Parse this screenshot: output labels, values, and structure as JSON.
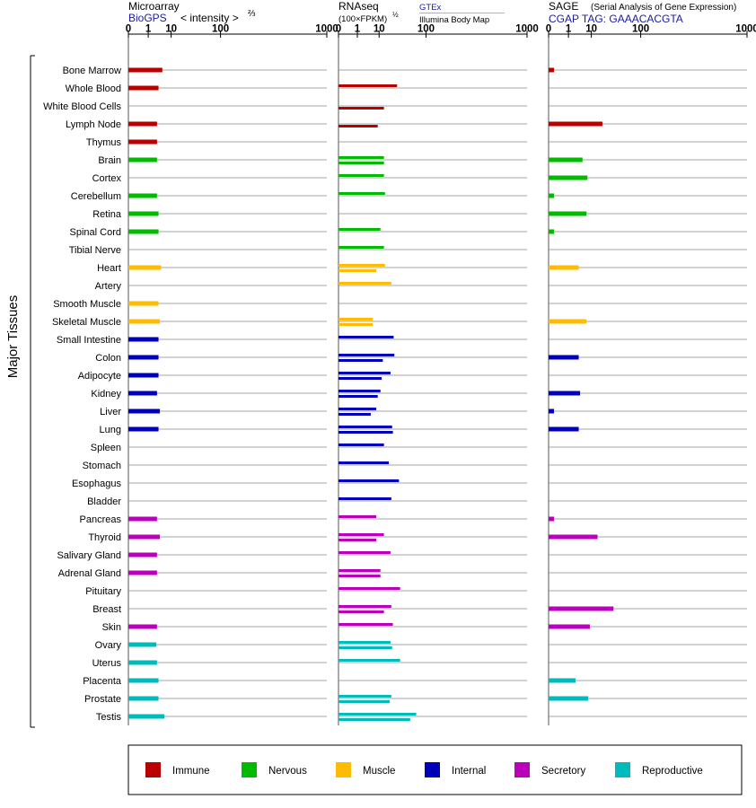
{
  "panels": {
    "microarray": {
      "title": "Microarray",
      "source": "BioGPS",
      "scale_label": "< intensity >",
      "scale_exp": "⅔"
    },
    "rnaseq": {
      "title": "RNAseq",
      "unit": "(100×FPKM)",
      "unit_exp": "½",
      "source_a": "GTEx",
      "source_b": "Illumina Body Map"
    },
    "sage": {
      "title": "SAGE",
      "subtitle": "(Serial Analysis of Gene Expression)",
      "tag": "CGAP TAG: GAAACACGTA"
    }
  },
  "axis_ticks": [
    "0",
    "1",
    "10",
    "100",
    "1000"
  ],
  "group_label": "Major Tissues",
  "legend": [
    {
      "key": "immune",
      "label": "Immune",
      "color": "#bb0000"
    },
    {
      "key": "nervous",
      "label": "Nervous",
      "color": "#00bb00"
    },
    {
      "key": "muscle",
      "label": "Muscle",
      "color": "#ffbb00"
    },
    {
      "key": "internal",
      "label": "Internal",
      "color": "#0000bb"
    },
    {
      "key": "secretory",
      "label": "Secretory",
      "color": "#bb00bb"
    },
    {
      "key": "reproductive",
      "label": "Reproductive",
      "color": "#00bbbb"
    }
  ],
  "chart_data": {
    "type": "bar",
    "orientation": "horizontal",
    "scale": "power",
    "xlim": [
      0,
      1000
    ],
    "series": [
      {
        "name": "Microarray"
      },
      {
        "name": "RNAseq GTEx"
      },
      {
        "name": "RNAseq Illumina Body Map"
      },
      {
        "name": "SAGE"
      }
    ],
    "tissues": [
      {
        "name": "Bone Marrow",
        "group": "immune",
        "microarray": 5,
        "gtex": null,
        "ibm": null,
        "sage": 0.02
      },
      {
        "name": "Whole Blood",
        "group": "immune",
        "microarray": 3.5,
        "gtex": 30,
        "ibm": null,
        "sage": null
      },
      {
        "name": "White Blood Cells",
        "group": "immune",
        "microarray": null,
        "gtex": null,
        "ibm": 14,
        "sage": null
      },
      {
        "name": "Lymph Node",
        "group": "immune",
        "microarray": 3,
        "gtex": null,
        "ibm": 9,
        "sage": 20
      },
      {
        "name": "Thymus",
        "group": "immune",
        "microarray": 3,
        "gtex": null,
        "ibm": null,
        "sage": null
      },
      {
        "name": "Brain",
        "group": "nervous",
        "microarray": 3,
        "gtex": 14,
        "ibm": 14,
        "sage": 5
      },
      {
        "name": "Cortex",
        "group": "nervous",
        "microarray": null,
        "gtex": 14,
        "ibm": null,
        "sage": 7.5
      },
      {
        "name": "Cerebellum",
        "group": "nervous",
        "microarray": 3,
        "gtex": 15,
        "ibm": null,
        "sage": 0.02
      },
      {
        "name": "Retina",
        "group": "nervous",
        "microarray": 3.5,
        "gtex": null,
        "ibm": null,
        "sage": 7
      },
      {
        "name": "Spinal Cord",
        "group": "nervous",
        "microarray": 3.5,
        "gtex": 11,
        "ibm": null,
        "sage": 0.02
      },
      {
        "name": "Tibial Nerve",
        "group": "nervous",
        "microarray": null,
        "gtex": 14,
        "ibm": null,
        "sage": null
      },
      {
        "name": "Heart",
        "group": "muscle",
        "microarray": 4.5,
        "gtex": 15,
        "ibm": 8,
        "sage": 3.5
      },
      {
        "name": "Artery",
        "group": "muscle",
        "microarray": null,
        "gtex": 22,
        "ibm": null,
        "sage": null
      },
      {
        "name": "Smooth Muscle",
        "group": "muscle",
        "microarray": 3.5,
        "gtex": null,
        "ibm": null,
        "sage": null
      },
      {
        "name": "Skeletal Muscle",
        "group": "muscle",
        "microarray": 4,
        "gtex": 6,
        "ibm": 6,
        "sage": 7
      },
      {
        "name": "Small Intestine",
        "group": "internal",
        "microarray": 3.5,
        "gtex": 25,
        "ibm": null,
        "sage": null
      },
      {
        "name": "Colon",
        "group": "internal",
        "microarray": 3.5,
        "gtex": 26,
        "ibm": 13,
        "sage": 3.5
      },
      {
        "name": "Adipocyte",
        "group": "internal",
        "microarray": 3.5,
        "gtex": 21,
        "ibm": 12,
        "sage": null
      },
      {
        "name": "Kidney",
        "group": "internal",
        "microarray": 3,
        "gtex": 11,
        "ibm": 9,
        "sage": 4
      },
      {
        "name": "Liver",
        "group": "internal",
        "microarray": 4,
        "gtex": 8,
        "ibm": 5,
        "sage": 0.02
      },
      {
        "name": "Lung",
        "group": "internal",
        "microarray": 3.5,
        "gtex": 23,
        "ibm": 24,
        "sage": 3.5
      },
      {
        "name": "Spleen",
        "group": "internal",
        "microarray": null,
        "gtex": 14,
        "ibm": null,
        "sage": null
      },
      {
        "name": "Stomach",
        "group": "internal",
        "microarray": null,
        "gtex": 19,
        "ibm": null,
        "sage": null
      },
      {
        "name": "Esophagus",
        "group": "internal",
        "microarray": null,
        "gtex": 33,
        "ibm": null,
        "sage": null
      },
      {
        "name": "Bladder",
        "group": "internal",
        "microarray": null,
        "gtex": 22,
        "ibm": null,
        "sage": null
      },
      {
        "name": "Pancreas",
        "group": "secretory",
        "microarray": 3,
        "gtex": 8,
        "ibm": null,
        "sage": 0.02
      },
      {
        "name": "Thyroid",
        "group": "secretory",
        "microarray": 4,
        "gtex": 14,
        "ibm": 8,
        "sage": 15
      },
      {
        "name": "Salivary Gland",
        "group": "secretory",
        "microarray": 3,
        "gtex": 21,
        "ibm": null,
        "sage": null
      },
      {
        "name": "Adrenal Gland",
        "group": "secretory",
        "microarray": 3,
        "gtex": 11,
        "ibm": 11,
        "sage": null
      },
      {
        "name": "Pituitary",
        "group": "secretory",
        "microarray": null,
        "gtex": 35,
        "ibm": null,
        "sage": null
      },
      {
        "name": "Breast",
        "group": "secretory",
        "microarray": null,
        "gtex": 22,
        "ibm": 14,
        "sage": 35
      },
      {
        "name": "Skin",
        "group": "secretory",
        "microarray": 3,
        "gtex": 24,
        "ibm": null,
        "sage": 9
      },
      {
        "name": "Ovary",
        "group": "reproductive",
        "microarray": 2.8,
        "gtex": 21,
        "ibm": 23,
        "sage": null
      },
      {
        "name": "Uterus",
        "group": "reproductive",
        "microarray": 3,
        "gtex": 35,
        "ibm": null,
        "sage": null
      },
      {
        "name": "Placenta",
        "group": "reproductive",
        "microarray": 3.5,
        "gtex": null,
        "ibm": null,
        "sage": 2.5
      },
      {
        "name": "Prostate",
        "group": "reproductive",
        "microarray": 3.5,
        "gtex": 22,
        "ibm": 20,
        "sage": 8
      },
      {
        "name": "Testis",
        "group": "reproductive",
        "microarray": 6,
        "gtex": 70,
        "ibm": 55,
        "sage": null
      }
    ]
  }
}
